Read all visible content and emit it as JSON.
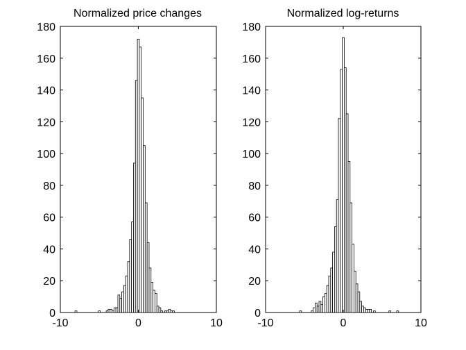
{
  "chart_data": [
    {
      "type": "bar",
      "title": "Normalized price changes",
      "xlabel": "",
      "ylabel": "",
      "xlim": [
        -10,
        10
      ],
      "ylim": [
        0,
        180
      ],
      "xticks": [
        "-10",
        "0",
        "10"
      ],
      "yticks": [
        "0",
        "20",
        "40",
        "60",
        "80",
        "100",
        "120",
        "140",
        "160",
        "180"
      ],
      "bin_width": 0.25,
      "bins": [
        {
          "x": -8.0,
          "count": 1
        },
        {
          "x": -5.0,
          "count": 1
        },
        {
          "x": -4.0,
          "count": 1
        },
        {
          "x": -3.75,
          "count": 2
        },
        {
          "x": -3.5,
          "count": 2
        },
        {
          "x": -3.25,
          "count": 1
        },
        {
          "x": -3.0,
          "count": 3
        },
        {
          "x": -2.75,
          "count": 3
        },
        {
          "x": -2.5,
          "count": 11
        },
        {
          "x": -2.25,
          "count": 9
        },
        {
          "x": -2.0,
          "count": 13
        },
        {
          "x": -1.75,
          "count": 17
        },
        {
          "x": -1.5,
          "count": 23
        },
        {
          "x": -1.25,
          "count": 32
        },
        {
          "x": -1.0,
          "count": 46
        },
        {
          "x": -0.75,
          "count": 57
        },
        {
          "x": -0.5,
          "count": 94
        },
        {
          "x": -0.25,
          "count": 146
        },
        {
          "x": 0.0,
          "count": 172
        },
        {
          "x": 0.25,
          "count": 167
        },
        {
          "x": 0.5,
          "count": 135
        },
        {
          "x": 0.75,
          "count": 105
        },
        {
          "x": 1.0,
          "count": 69
        },
        {
          "x": 1.25,
          "count": 44
        },
        {
          "x": 1.5,
          "count": 28
        },
        {
          "x": 1.75,
          "count": 19
        },
        {
          "x": 2.0,
          "count": 14
        },
        {
          "x": 2.25,
          "count": 12
        },
        {
          "x": 2.5,
          "count": 4
        },
        {
          "x": 2.75,
          "count": 3
        },
        {
          "x": 3.0,
          "count": 1
        },
        {
          "x": 3.5,
          "count": 1
        },
        {
          "x": 3.75,
          "count": 1
        },
        {
          "x": 4.0,
          "count": 2
        },
        {
          "x": 4.25,
          "count": 1
        },
        {
          "x": 4.5,
          "count": 1
        }
      ],
      "grid": false,
      "legend": "none"
    },
    {
      "type": "bar",
      "title": "Normalized log-returns",
      "xlabel": "",
      "ylabel": "",
      "xlim": [
        -10,
        10
      ],
      "ylim": [
        0,
        180
      ],
      "xticks": [
        "-10",
        "0",
        "10"
      ],
      "yticks": [
        "0",
        "20",
        "40",
        "60",
        "80",
        "100",
        "120",
        "140",
        "160",
        "180"
      ],
      "bin_width": 0.25,
      "bins": [
        {
          "x": -5.5,
          "count": 1
        },
        {
          "x": -4.0,
          "count": 1
        },
        {
          "x": -3.75,
          "count": 3
        },
        {
          "x": -3.5,
          "count": 6
        },
        {
          "x": -3.25,
          "count": 4
        },
        {
          "x": -3.0,
          "count": 7
        },
        {
          "x": -2.75,
          "count": 5
        },
        {
          "x": -2.5,
          "count": 10
        },
        {
          "x": -2.25,
          "count": 12
        },
        {
          "x": -2.0,
          "count": 17
        },
        {
          "x": -1.75,
          "count": 23
        },
        {
          "x": -1.5,
          "count": 28
        },
        {
          "x": -1.25,
          "count": 38
        },
        {
          "x": -1.0,
          "count": 54
        },
        {
          "x": -0.75,
          "count": 71
        },
        {
          "x": -0.5,
          "count": 122
        },
        {
          "x": -0.25,
          "count": 153
        },
        {
          "x": 0.0,
          "count": 173
        },
        {
          "x": 0.25,
          "count": 154
        },
        {
          "x": 0.5,
          "count": 125
        },
        {
          "x": 0.75,
          "count": 95
        },
        {
          "x": 1.0,
          "count": 69
        },
        {
          "x": 1.25,
          "count": 43
        },
        {
          "x": 1.5,
          "count": 26
        },
        {
          "x": 1.75,
          "count": 18
        },
        {
          "x": 2.0,
          "count": 13
        },
        {
          "x": 2.25,
          "count": 7
        },
        {
          "x": 2.5,
          "count": 4
        },
        {
          "x": 2.75,
          "count": 3
        },
        {
          "x": 3.0,
          "count": 2
        },
        {
          "x": 3.25,
          "count": 2
        },
        {
          "x": 3.5,
          "count": 2
        },
        {
          "x": 4.0,
          "count": 1
        },
        {
          "x": 6.0,
          "count": 1
        },
        {
          "x": 7.0,
          "count": 1
        }
      ],
      "grid": false,
      "legend": "none"
    }
  ],
  "style": {
    "bar_fill": "#ffffff",
    "bar_stroke": "#000000",
    "axes_color": "#000000",
    "background": "#ffffff"
  }
}
